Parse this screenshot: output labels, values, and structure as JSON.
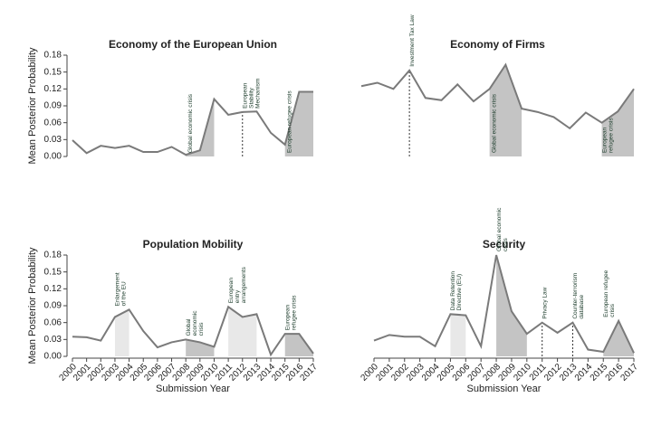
{
  "chart_data": [
    {
      "type": "line",
      "title": "Economy of the European Union",
      "ylabel": "Mean Posterior Probability",
      "x": [
        2000,
        2001,
        2002,
        2003,
        2004,
        2005,
        2006,
        2007,
        2008,
        2009,
        2010,
        2011,
        2012,
        2013,
        2014,
        2015,
        2016,
        2017
      ],
      "xlim": [
        2000,
        2017
      ],
      "ylim": [
        0,
        0.18
      ],
      "yticks": [
        {
          "value": 0,
          "label": "0.00"
        },
        {
          "value": 0.03,
          "label": "0.03"
        },
        {
          "value": 0.06,
          "label": "0.06"
        },
        {
          "value": 0.09,
          "label": "0.09"
        },
        {
          "value": 0.12,
          "label": "0.12"
        },
        {
          "value": 0.15,
          "label": "0.15"
        },
        {
          "value": 0.18,
          "label": "0.18"
        }
      ],
      "series": [
        {
          "color": "#7a7a7a",
          "values": [
            0.029,
            0.006,
            0.019,
            0.015,
            0.019,
            0.008,
            0.008,
            0.017,
            0.003,
            0.011,
            0.102,
            0.074,
            0.079,
            0.08,
            0.042,
            0.021,
            0.115,
            0.115
          ]
        }
      ],
      "events": [
        {
          "start": 2008,
          "end": 2010,
          "color": "#c4c4c4",
          "label": [
            "Global economic crisis"
          ]
        },
        {
          "x": 2012,
          "label": [
            "European",
            "Stability",
            "Mechanism"
          ]
        },
        {
          "start": 2015,
          "end": 2017,
          "color": "#c4c4c4",
          "label": [
            "European refugee crisis"
          ]
        }
      ]
    },
    {
      "type": "line",
      "title": "Economy of Firms",
      "x": [
        2000,
        2001,
        2002,
        2003,
        2004,
        2005,
        2006,
        2007,
        2008,
        2009,
        2010,
        2011,
        2012,
        2013,
        2014,
        2015,
        2016,
        2017
      ],
      "xlim": [
        2000,
        2017
      ],
      "ylim": [
        0,
        0.18
      ],
      "series": [
        {
          "color": "#7a7a7a",
          "values": [
            0.125,
            0.131,
            0.12,
            0.153,
            0.104,
            0.1,
            0.128,
            0.098,
            0.12,
            0.163,
            0.085,
            0.079,
            0.07,
            0.05,
            0.078,
            0.06,
            0.08,
            0.12
          ]
        }
      ],
      "events": [
        {
          "x": 2003,
          "label": [
            "Investment Tax Law"
          ]
        },
        {
          "start": 2008,
          "end": 2010,
          "color": "#c4c4c4",
          "label": [
            "Global economic crisis"
          ]
        },
        {
          "start": 2015,
          "end": 2017,
          "color": "#c4c4c4",
          "label": [
            "European",
            "refugee crisis"
          ]
        }
      ]
    },
    {
      "type": "line",
      "title": "Population Mobility",
      "ylabel": "Mean Posterior Probability",
      "xlabel": "Submission Year",
      "x": [
        2000,
        2001,
        2002,
        2003,
        2004,
        2005,
        2006,
        2007,
        2008,
        2009,
        2010,
        2011,
        2012,
        2013,
        2014,
        2015,
        2016,
        2017
      ],
      "xlim": [
        2000,
        2017
      ],
      "ylim": [
        0,
        0.18
      ],
      "xticks": [
        2000,
        2001,
        2002,
        2003,
        2004,
        2005,
        2006,
        2007,
        2008,
        2009,
        2010,
        2011,
        2012,
        2013,
        2014,
        2015,
        2016,
        2017
      ],
      "yticks": [
        {
          "value": 0,
          "label": "0.00"
        },
        {
          "value": 0.03,
          "label": "0.03"
        },
        {
          "value": 0.06,
          "label": "0.06"
        },
        {
          "value": 0.09,
          "label": "0.09"
        },
        {
          "value": 0.12,
          "label": "0.12"
        },
        {
          "value": 0.15,
          "label": "0.15"
        },
        {
          "value": 0.18,
          "label": "0.18"
        }
      ],
      "series": [
        {
          "color": "#7a7a7a",
          "values": [
            0.035,
            0.034,
            0.028,
            0.07,
            0.083,
            0.045,
            0.016,
            0.025,
            0.03,
            0.025,
            0.017,
            0.088,
            0.07,
            0.075,
            0.003,
            0.04,
            0.04,
            0.005
          ]
        }
      ],
      "events": [
        {
          "start": 2003,
          "end": 2004,
          "color": "#e8e8e8",
          "label": [
            "Enlargement",
            "of the EU"
          ]
        },
        {
          "start": 2008,
          "end": 2010,
          "color": "#c4c4c4",
          "label": [
            "Global",
            "economic",
            "crisis"
          ]
        },
        {
          "start": 2011,
          "end": 2013,
          "color": "#e8e8e8",
          "label": [
            "European",
            "entry",
            "arrangements"
          ]
        },
        {
          "start": 2015,
          "end": 2017,
          "color": "#c4c4c4",
          "label": [
            "European",
            "refugee crisis"
          ]
        }
      ]
    },
    {
      "type": "line",
      "title": "Security",
      "xlabel": "Submission Year",
      "x": [
        2000,
        2001,
        2002,
        2003,
        2004,
        2005,
        2006,
        2007,
        2008,
        2009,
        2010,
        2011,
        2012,
        2013,
        2014,
        2015,
        2016,
        2017
      ],
      "xlim": [
        2000,
        2017
      ],
      "ylim": [
        0,
        0.18
      ],
      "xticks": [
        2000,
        2001,
        2002,
        2003,
        2004,
        2005,
        2006,
        2007,
        2008,
        2009,
        2010,
        2011,
        2012,
        2013,
        2014,
        2015,
        2016,
        2017
      ],
      "series": [
        {
          "color": "#7a7a7a",
          "values": [
            0.028,
            0.038,
            0.035,
            0.035,
            0.018,
            0.075,
            0.073,
            0.018,
            0.18,
            0.08,
            0.04,
            0.06,
            0.042,
            0.06,
            0.012,
            0.008,
            0.063,
            0.006
          ]
        }
      ],
      "events": [
        {
          "start": 2005,
          "end": 2006,
          "color": "#e8e8e8",
          "label": [
            "Data Retention",
            "Directive (EU)"
          ]
        },
        {
          "start": 2008,
          "end": 2010,
          "color": "#c4c4c4",
          "label": [
            "Global economic",
            "crisis"
          ]
        },
        {
          "x": 2011,
          "label": [
            "Privacy Law"
          ]
        },
        {
          "x": 2013,
          "label": [
            "Counter-terrorism",
            "database"
          ]
        },
        {
          "start": 2015,
          "end": 2017,
          "color": "#c4c4c4",
          "label": [
            "European refugee",
            "crisis"
          ]
        }
      ]
    }
  ]
}
